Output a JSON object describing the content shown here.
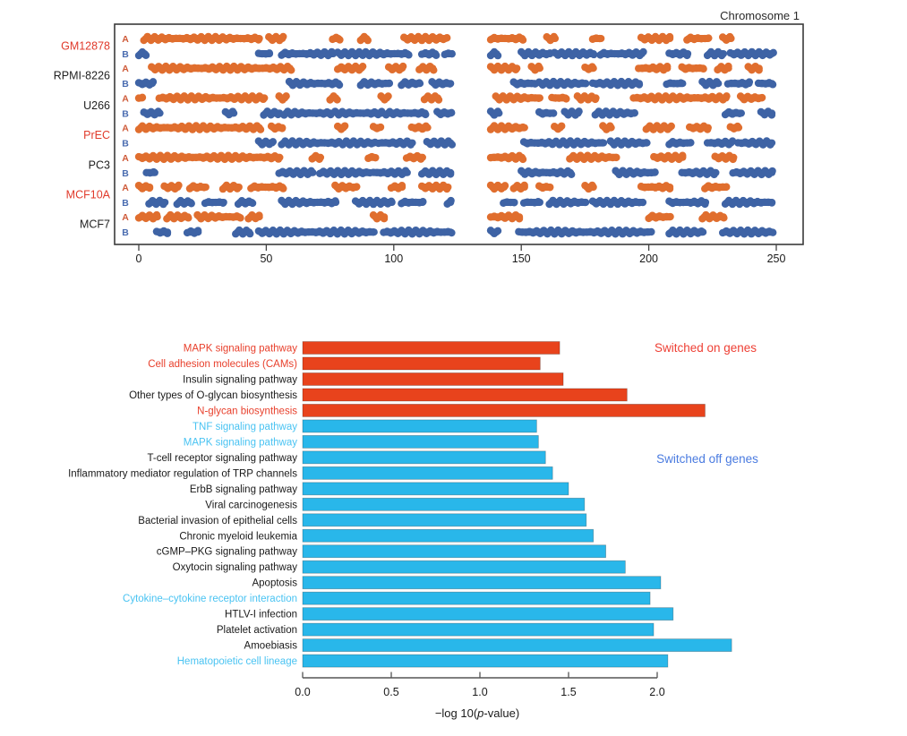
{
  "figure": {
    "background": "#ffffff"
  },
  "chart_data": [
    {
      "type": "scatter",
      "subtype": "genomic-AB-compartment-tracks",
      "title": "Chromosome 1",
      "x_ticks": [
        0,
        50,
        100,
        150,
        200,
        250
      ],
      "xlim": [
        -10,
        261
      ],
      "centromere_gap": [
        123,
        138
      ],
      "track_labels": [
        "A",
        "B"
      ],
      "legend_position": "none",
      "grid": false,
      "colors": {
        "a_points": "#e06e2e",
        "b_points": "#3e63a5",
        "a_letter": "#cf5b3a",
        "b_letter": "#4a6cb0",
        "box": "#3a3a3a",
        "tick_text": "#1a1a1a"
      },
      "series": [
        {
          "name": "GM12878",
          "name_color": "#e03a2b",
          "A": [
            [
              2,
              48
            ],
            [
              51,
              57
            ],
            [
              76,
              79
            ],
            [
              87,
              90
            ],
            [
              104,
              121
            ],
            [
              138,
              151
            ],
            [
              160,
              164
            ],
            [
              178,
              182
            ],
            [
              197,
              209
            ],
            [
              215,
              224
            ],
            [
              229,
              233
            ]
          ],
          "B": [
            [
              0,
              3
            ],
            [
              47,
              52
            ],
            [
              56,
              77
            ],
            [
              78,
              88
            ],
            [
              89,
              106
            ],
            [
              111,
              117
            ],
            [
              120,
              123
            ],
            [
              138,
              141
            ],
            [
              150,
              162
            ],
            [
              163,
              179
            ],
            [
              181,
              198
            ],
            [
              208,
              216
            ],
            [
              223,
              230
            ],
            [
              232,
              249
            ]
          ]
        },
        {
          "name": "RPMI-8226",
          "name_color": "#1f1f1f",
          "A": [
            [
              5,
              60
            ],
            [
              78,
              88
            ],
            [
              98,
              104
            ],
            [
              110,
              116
            ],
            [
              138,
              149
            ],
            [
              154,
              158
            ],
            [
              175,
              179
            ],
            [
              196,
              208
            ],
            [
              213,
              222
            ],
            [
              227,
              232
            ],
            [
              239,
              244
            ]
          ],
          "B": [
            [
              0,
              6
            ],
            [
              59,
              79
            ],
            [
              87,
              99
            ],
            [
              103,
              111
            ],
            [
              115,
              123
            ],
            [
              147,
              156
            ],
            [
              157,
              176
            ],
            [
              178,
              197
            ],
            [
              207,
              214
            ],
            [
              221,
              228
            ],
            [
              231,
              240
            ],
            [
              243,
              249
            ]
          ]
        },
        {
          "name": "U266",
          "name_color": "#1f1f1f",
          "A": [
            [
              0,
              2
            ],
            [
              8,
              48
            ],
            [
              46,
              50
            ],
            [
              55,
              58
            ],
            [
              75,
              78
            ],
            [
              95,
              98
            ],
            [
              112,
              118
            ],
            [
              140,
              158
            ],
            [
              162,
              168
            ],
            [
              172,
              180
            ],
            [
              194,
              231
            ],
            [
              236,
              245
            ]
          ],
          "B": [
            [
              2,
              9
            ],
            [
              34,
              38
            ],
            [
              49,
              56
            ],
            [
              57,
              76
            ],
            [
              77,
              96
            ],
            [
              97,
              113
            ],
            [
              117,
              123
            ],
            [
              138,
              142
            ],
            [
              157,
              163
            ],
            [
              167,
              173
            ],
            [
              179,
              195
            ],
            [
              230,
              237
            ],
            [
              244,
              249
            ]
          ]
        },
        {
          "name": "PrEC",
          "name_color": "#e03a2b",
          "A": [
            [
              0,
              48
            ],
            [
              52,
              57
            ],
            [
              78,
              81
            ],
            [
              92,
              95
            ],
            [
              107,
              114
            ],
            [
              138,
              152
            ],
            [
              163,
              166
            ],
            [
              182,
              186
            ],
            [
              199,
              209
            ],
            [
              216,
              224
            ],
            [
              232,
              236
            ]
          ],
          "B": [
            [
              47,
              53
            ],
            [
              56,
              79
            ],
            [
              80,
              93
            ],
            [
              94,
              108
            ],
            [
              113,
              123
            ],
            [
              151,
              164
            ],
            [
              165,
              183
            ],
            [
              185,
              200
            ],
            [
              208,
              217
            ],
            [
              223,
              233
            ],
            [
              235,
              249
            ]
          ]
        },
        {
          "name": "PC3",
          "name_color": "#1f1f1f",
          "A": [
            [
              0,
              56
            ],
            [
              68,
              72
            ],
            [
              90,
              93
            ],
            [
              105,
              112
            ],
            [
              138,
              151
            ],
            [
              169,
              188
            ],
            [
              202,
              214
            ],
            [
              226,
              234
            ]
          ],
          "B": [
            [
              3,
              7
            ],
            [
              55,
              69
            ],
            [
              71,
              91
            ],
            [
              92,
              106
            ],
            [
              111,
              123
            ],
            [
              150,
              170
            ],
            [
              187,
              203
            ],
            [
              213,
              227
            ],
            [
              233,
              249
            ]
          ]
        },
        {
          "name": "MCF10A",
          "name_color": "#e03a2b",
          "A": [
            [
              0,
              5
            ],
            [
              10,
              16
            ],
            [
              20,
              27
            ],
            [
              33,
              40
            ],
            [
              44,
              57
            ],
            [
              77,
              86
            ],
            [
              99,
              104
            ],
            [
              111,
              122
            ],
            [
              138,
              144
            ],
            [
              147,
              152
            ],
            [
              157,
              162
            ],
            [
              175,
              179
            ],
            [
              197,
              209
            ],
            [
              222,
              231
            ]
          ],
          "B": [
            [
              4,
              11
            ],
            [
              15,
              21
            ],
            [
              26,
              34
            ],
            [
              39,
              45
            ],
            [
              56,
              78
            ],
            [
              85,
              100
            ],
            [
              103,
              112
            ],
            [
              121,
              123
            ],
            [
              143,
              148
            ],
            [
              151,
              158
            ],
            [
              161,
              176
            ],
            [
              178,
              198
            ],
            [
              208,
              223
            ],
            [
              230,
              249
            ]
          ]
        },
        {
          "name": "MCF7",
          "name_color": "#1f1f1f",
          "A": [
            [
              0,
              8
            ],
            [
              11,
              20
            ],
            [
              23,
              40
            ],
            [
              43,
              48
            ],
            [
              92,
              97
            ],
            [
              138,
              150
            ],
            [
              200,
              209
            ],
            [
              221,
              230
            ]
          ],
          "B": [
            [
              7,
              12
            ],
            [
              19,
              24
            ],
            [
              38,
              44
            ],
            [
              47,
              93
            ],
            [
              96,
              123
            ],
            [
              138,
              141
            ],
            [
              149,
              201
            ],
            [
              208,
              222
            ],
            [
              229,
              249
            ]
          ]
        }
      ]
    },
    {
      "type": "bar",
      "orientation": "horizontal",
      "xlabel_parts": [
        "−log 10(",
        "p",
        "-value)"
      ],
      "x_ticks": [
        0,
        0.5,
        1,
        1.5,
        2
      ],
      "x_tick_labels": [
        "0.0",
        "0.5",
        "1.0",
        "1.5",
        "2.0"
      ],
      "xlim": [
        0,
        2.45
      ],
      "grid": false,
      "bar_colors": {
        "on": "#e8431c",
        "off": "#29b7ea"
      },
      "annotations": [
        {
          "text": "Switched on genes",
          "color": "#ee3f34"
        },
        {
          "text": "Switched off genes",
          "color": "#4a7be0"
        }
      ],
      "categories": [
        "MAPK signaling pathway",
        "Cell adhesion molecules (CAMs)",
        "Insulin signaling pathway",
        "Other types of O-glycan biosynthesis",
        "N-glycan biosynthesis",
        "TNF signaling pathway",
        "MAPK signaling pathway",
        "T-cell receptor signaling pathway",
        "Inflammatory mediator regulation of TRP channels",
        "ErbB signaling pathway",
        "Viral carcinogenesis",
        "Bacterial invasion of epithelial cells",
        "Chronic myeloid leukemia",
        "cGMP–PKG signaling pathway",
        "Oxytocin signaling pathway",
        "Apoptosis",
        "Cytokine–cytokine receptor interaction",
        "HTLV-I infection",
        "Platelet activation",
        "Amoebiasis",
        "Hematopoietic cell lineage"
      ],
      "values": [
        1.45,
        1.34,
        1.47,
        1.83,
        2.27,
        1.32,
        1.33,
        1.37,
        1.41,
        1.5,
        1.59,
        1.6,
        1.64,
        1.71,
        1.82,
        2.02,
        1.96,
        2.09,
        1.98,
        2.42,
        2.06
      ],
      "groups": [
        "on",
        "on",
        "on",
        "on",
        "on",
        "off",
        "off",
        "off",
        "off",
        "off",
        "off",
        "off",
        "off",
        "off",
        "off",
        "off",
        "off",
        "off",
        "off",
        "off",
        "off"
      ],
      "label_colors": [
        "#e8402c",
        "#e8402c",
        "#1a1a1a",
        "#1a1a1a",
        "#e8402c",
        "#49c3f2",
        "#49c3f2",
        "#1a1a1a",
        "#1a1a1a",
        "#1a1a1a",
        "#1a1a1a",
        "#1a1a1a",
        "#1a1a1a",
        "#1a1a1a",
        "#1a1a1a",
        "#1a1a1a",
        "#49c3f2",
        "#1a1a1a",
        "#1a1a1a",
        "#1a1a1a",
        "#49c3f2"
      ]
    }
  ]
}
